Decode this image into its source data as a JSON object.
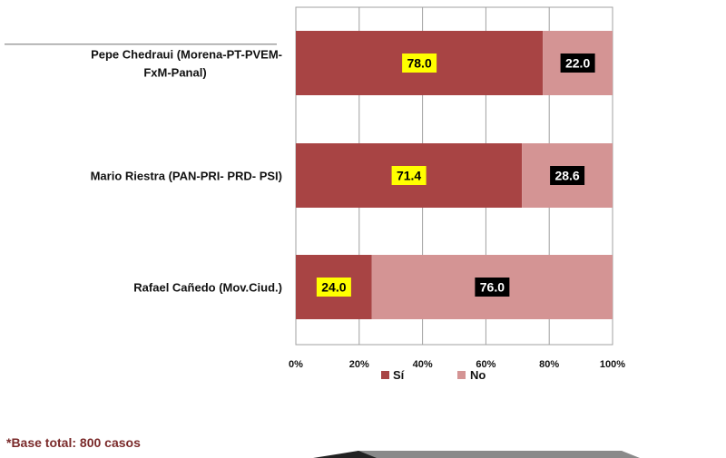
{
  "chart_data": {
    "type": "bar",
    "orientation": "horizontal",
    "stacked": true,
    "categories": [
      [
        "Pepe Chedraui (Morena-PT-PVEM-",
        "FxM-Panal)"
      ],
      [
        "Mario Riestra (PAN-PRI- PRD- PSI)"
      ],
      [
        "Rafael Cañedo (Mov.Ciud.)"
      ]
    ],
    "series": [
      {
        "name": "Sí",
        "values": [
          78.0,
          71.4,
          24.0
        ],
        "value_labels": [
          "78.0",
          "71.4",
          "24.0"
        ],
        "color": "#a84444",
        "label_bg": "#ffff00",
        "label_color": "#000000"
      },
      {
        "name": "No",
        "values": [
          22.0,
          28.6,
          76.0
        ],
        "value_labels": [
          "22.0",
          "28.6",
          "76.0"
        ],
        "color": "#d49494",
        "label_bg": "#000000",
        "label_color": "#ffffff"
      }
    ],
    "xlim": [
      0,
      100
    ],
    "x_ticks": [
      "0%",
      "20%",
      "40%",
      "60%",
      "80%",
      "100%"
    ],
    "grid": true,
    "legend_position": "bottom"
  },
  "footnote": "*Base total: 800 casos"
}
